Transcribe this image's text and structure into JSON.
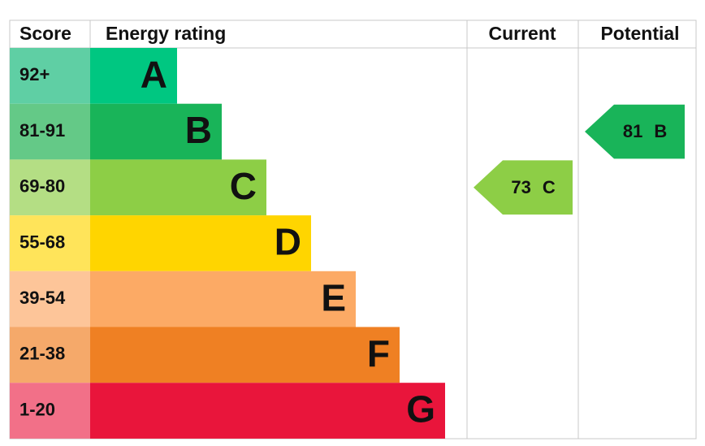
{
  "header": {
    "score": "Score",
    "rating": "Energy rating",
    "current": "Current",
    "potential": "Potential"
  },
  "rows": [
    {
      "score": "92+",
      "letter": "A",
      "color": "#00c781",
      "score_color": "#5fcfa4"
    },
    {
      "score": "81-91",
      "letter": "B",
      "color": "#19b459",
      "score_color": "#64c987"
    },
    {
      "score": "69-80",
      "letter": "C",
      "color": "#8dce46",
      "score_color": "#b4de84"
    },
    {
      "score": "55-68",
      "letter": "D",
      "color": "#ffd500",
      "score_color": "#ffe45a"
    },
    {
      "score": "39-54",
      "letter": "E",
      "color": "#fcaa65",
      "score_color": "#fdc599"
    },
    {
      "score": "21-38",
      "letter": "F",
      "color": "#ef8023",
      "score_color": "#f5a96a"
    },
    {
      "score": "1-20",
      "letter": "G",
      "color": "#e9153b",
      "score_color": "#f27088"
    }
  ],
  "current": {
    "value": 73,
    "letter": "C"
  },
  "potential": {
    "value": 81,
    "letter": "B"
  }
}
